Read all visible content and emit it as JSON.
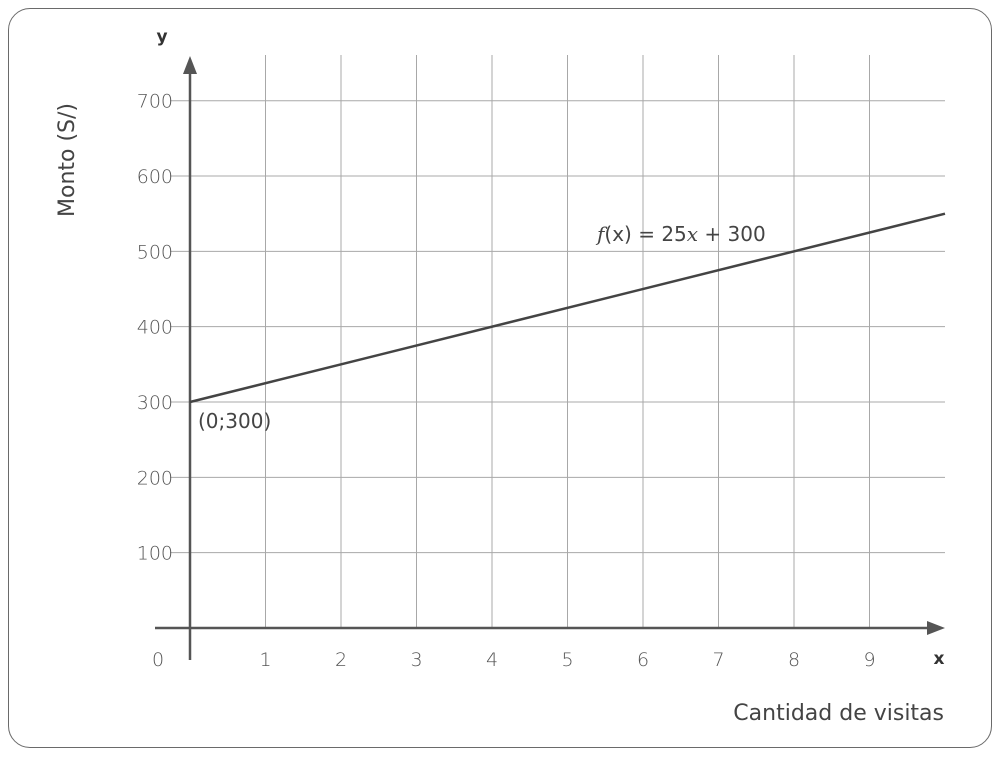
{
  "chart_data": {
    "type": "line",
    "title": "",
    "xlabel": "Cantidad de visitas",
    "ylabel": "Monto (S/)",
    "x_axis_letter": "x",
    "y_axis_letter": "y",
    "origin_label": "0",
    "xlim": [
      0,
      10
    ],
    "ylim": [
      0,
      700
    ],
    "x_ticks": [
      1,
      2,
      3,
      4,
      5,
      6,
      7,
      8,
      9
    ],
    "y_ticks": [
      100,
      200,
      300,
      400,
      500,
      600,
      700
    ],
    "grid": true,
    "series": [
      {
        "name": "f(x) = 25x + 300",
        "x": [
          0,
          10
        ],
        "y": [
          300,
          550
        ],
        "color": "#444444"
      }
    ],
    "equation": {
      "fn": "f",
      "arg": "(x)",
      "rhs_prefix": " = 25",
      "rhs_var": "x",
      "rhs_suffix": " + 300"
    },
    "annotations": [
      {
        "text": "(0;300)",
        "x": 0,
        "y": 300
      }
    ],
    "colors": {
      "grid": "#a8a8a8",
      "axis": "#555555",
      "line": "#444444",
      "frame": "#6a6a6a"
    }
  }
}
